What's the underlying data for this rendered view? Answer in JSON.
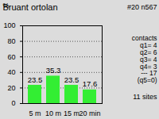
{
  "chart_data": {
    "type": "bar",
    "title": "Bruant ortolan",
    "subtitle": "#20 n567",
    "ylabel": "%",
    "categories": [
      "5 m",
      "10 m",
      "15 m",
      "20 min"
    ],
    "values": [
      23.5,
      35.3,
      23.5,
      17.6
    ],
    "color": "#33ee33",
    "ylim": [
      0,
      100
    ],
    "yticks": [
      0,
      20,
      40,
      60,
      80,
      100
    ],
    "grid": true,
    "data_labels": true,
    "annotations": [
      [
        "contacts",
        "q1= 4",
        "q2= 6",
        "q3= 4",
        "q4= 3",
        "--- 17",
        "(q5=0)"
      ],
      [
        "11 sites"
      ]
    ]
  }
}
